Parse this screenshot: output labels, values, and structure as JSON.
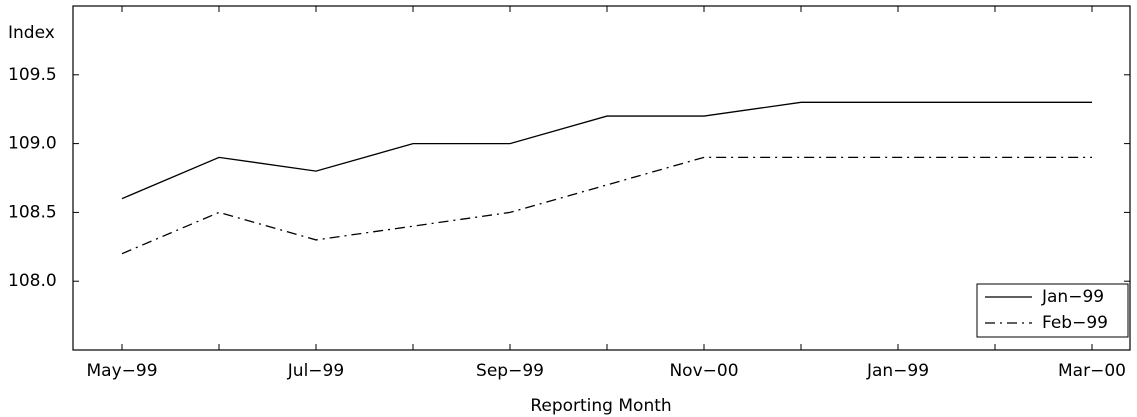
{
  "chart_data": {
    "type": "line",
    "ylabel": "Index",
    "xlabel": "Reporting Month",
    "categories": [
      "May−99",
      null,
      "Jul−99",
      null,
      "Sep−99",
      null,
      "Nov−00",
      null,
      "Jan−99",
      null,
      "Mar−00"
    ],
    "series": [
      {
        "name": "Jan−99",
        "color": "#000000",
        "linestyle": "solid",
        "values": [
          108.6,
          108.9,
          108.8,
          109.0,
          109.0,
          109.2,
          109.2,
          109.3,
          109.3,
          109.3,
          109.3
        ]
      },
      {
        "name": "Feb−99",
        "color": "#000000",
        "linestyle": "dashdot",
        "values": [
          108.2,
          108.5,
          108.3,
          108.4,
          108.5,
          108.7,
          108.9,
          108.9,
          108.9,
          108.9,
          108.9
        ]
      }
    ],
    "ylim": [
      107.5,
      110.0
    ],
    "yticks": [
      {
        "value": 108.0,
        "label": "108.0"
      },
      108.5,
      {
        "value": 109.0,
        "label": "109.0"
      },
      109.5
    ],
    "legend": "lower right"
  }
}
